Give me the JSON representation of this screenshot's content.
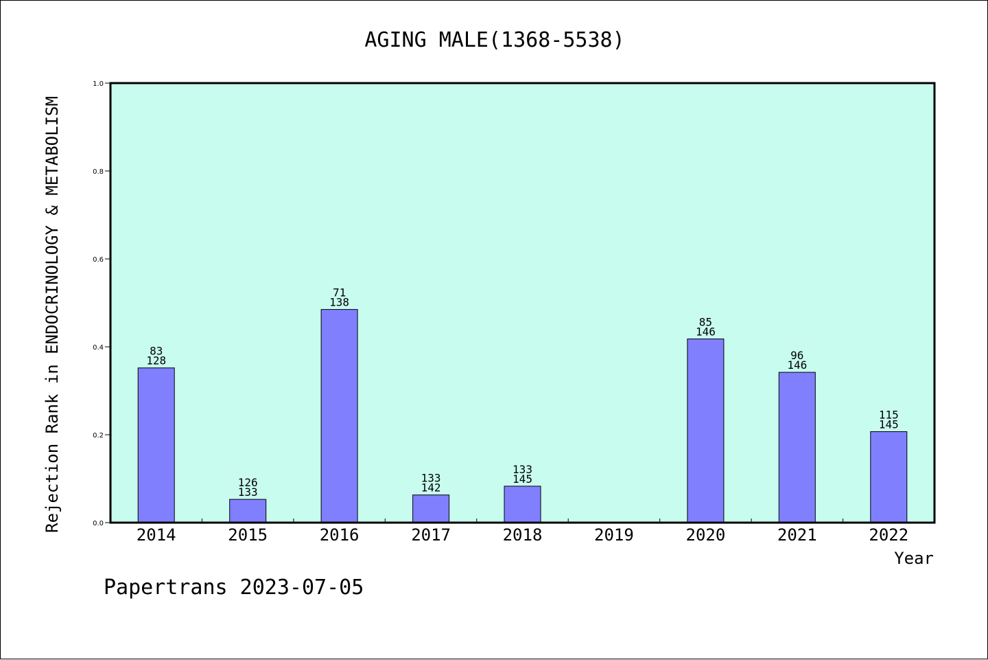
{
  "chart_data": {
    "type": "bar",
    "title": "AGING MALE(1368-5538)",
    "xlabel": "Year",
    "ylabel": "Rejection Rank in ENDOCRINOLOGY & METABOLISM",
    "ylim": [
      0,
      1.0
    ],
    "yticks": [
      "0.0",
      "0.2",
      "0.4",
      "0.6",
      "0.8",
      "1.0"
    ],
    "categories": [
      "2014",
      "2015",
      "2016",
      "2017",
      "2018",
      "2019",
      "2020",
      "2021",
      "2022"
    ],
    "values": [
      0.352,
      0.053,
      0.485,
      0.063,
      0.083,
      null,
      0.418,
      0.342,
      0.207
    ],
    "label_top": [
      "83",
      "126",
      "71",
      "133",
      "133",
      "",
      "85",
      "96",
      "115"
    ],
    "label_bottom": [
      "128",
      "133",
      "138",
      "142",
      "145",
      "",
      "146",
      "146",
      "145"
    ],
    "grid": false,
    "colors": {
      "plot_background": "#c8fcee",
      "bar_fill": "#8080ff",
      "bar_stroke": "#000000"
    }
  },
  "footer": {
    "credit": "Papertrans 2023-07-05"
  }
}
